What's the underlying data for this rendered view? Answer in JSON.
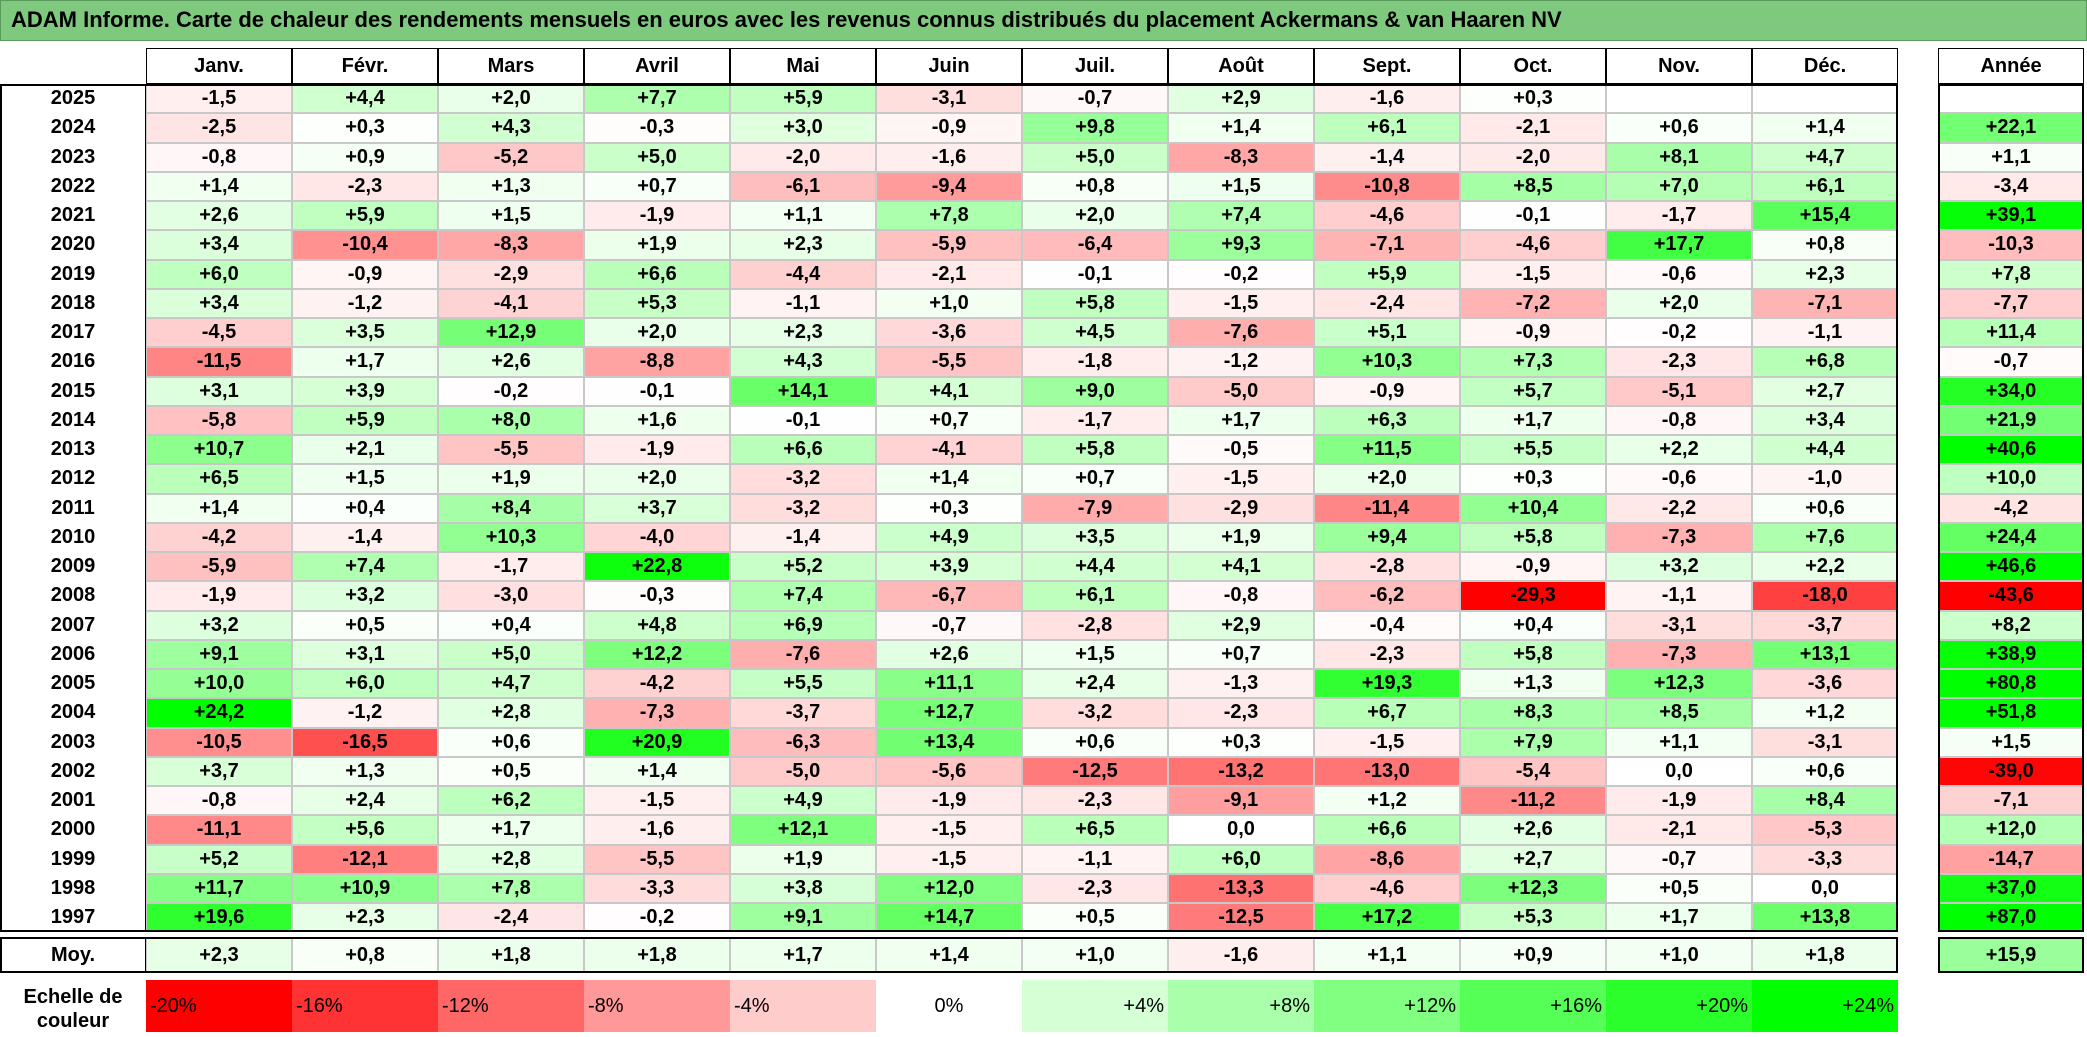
{
  "title": "ADAM Informe. Carte de chaleur des rendements mensuels en euros avec les revenus connus distribués du placement Ackermans & van Haaren NV",
  "chart_data": {
    "type": "heatmap",
    "title": "ADAM Informe. Carte de chaleur des rendements mensuels en euros avec les revenus connus distribués du placement Ackermans & van Haaren NV",
    "months": [
      "Janv.",
      "Févr.",
      "Mars",
      "Avril",
      "Mai",
      "Juin",
      "Juil.",
      "Août",
      "Sept.",
      "Oct.",
      "Nov.",
      "Déc."
    ],
    "year_header": "Année",
    "average_label": "Moy.",
    "rows": [
      {
        "year": "2025",
        "months": [
          "-1,5",
          "+4,4",
          "+2,0",
          "+7,7",
          "+5,9",
          "-3,1",
          "-0,7",
          "+2,9",
          "-1,6",
          "+0,3",
          "",
          ""
        ],
        "annual": ""
      },
      {
        "year": "2024",
        "months": [
          "-2,5",
          "+0,3",
          "+4,3",
          "-0,3",
          "+3,0",
          "-0,9",
          "+9,8",
          "+1,4",
          "+6,1",
          "-2,1",
          "+0,6",
          "+1,4"
        ],
        "annual": "+22,1"
      },
      {
        "year": "2023",
        "months": [
          "-0,8",
          "+0,9",
          "-5,2",
          "+5,0",
          "-2,0",
          "-1,6",
          "+5,0",
          "-8,3",
          "-1,4",
          "-2,0",
          "+8,1",
          "+4,7"
        ],
        "annual": "+1,1"
      },
      {
        "year": "2022",
        "months": [
          "+1,4",
          "-2,3",
          "+1,3",
          "+0,7",
          "-6,1",
          "-9,4",
          "+0,8",
          "+1,5",
          "-10,8",
          "+8,5",
          "+7,0",
          "+6,1"
        ],
        "annual": "-3,4"
      },
      {
        "year": "2021",
        "months": [
          "+2,6",
          "+5,9",
          "+1,5",
          "-1,9",
          "+1,1",
          "+7,8",
          "+2,0",
          "+7,4",
          "-4,6",
          "-0,1",
          "-1,7",
          "+15,4"
        ],
        "annual": "+39,1"
      },
      {
        "year": "2020",
        "months": [
          "+3,4",
          "-10,4",
          "-8,3",
          "+1,9",
          "+2,3",
          "-5,9",
          "-6,4",
          "+9,3",
          "-7,1",
          "-4,6",
          "+17,7",
          "+0,8"
        ],
        "annual": "-10,3"
      },
      {
        "year": "2019",
        "months": [
          "+6,0",
          "-0,9",
          "-2,9",
          "+6,6",
          "-4,4",
          "-2,1",
          "-0,1",
          "-0,2",
          "+5,9",
          "-1,5",
          "-0,6",
          "+2,3"
        ],
        "annual": "+7,8"
      },
      {
        "year": "2018",
        "months": [
          "+3,4",
          "-1,2",
          "-4,1",
          "+5,3",
          "-1,1",
          "+1,0",
          "+5,8",
          "-1,5",
          "-2,4",
          "-7,2",
          "+2,0",
          "-7,1"
        ],
        "annual": "-7,7"
      },
      {
        "year": "2017",
        "months": [
          "-4,5",
          "+3,5",
          "+12,9",
          "+2,0",
          "+2,3",
          "-3,6",
          "+4,5",
          "-7,6",
          "+5,1",
          "-0,9",
          "-0,2",
          "-1,1"
        ],
        "annual": "+11,4"
      },
      {
        "year": "2016",
        "months": [
          "-11,5",
          "+1,7",
          "+2,6",
          "-8,8",
          "+4,3",
          "-5,5",
          "-1,8",
          "-1,2",
          "+10,3",
          "+7,3",
          "-2,3",
          "+6,8"
        ],
        "annual": "-0,7"
      },
      {
        "year": "2015",
        "months": [
          "+3,1",
          "+3,9",
          "-0,2",
          "-0,1",
          "+14,1",
          "+4,1",
          "+9,0",
          "-5,0",
          "-0,9",
          "+5,7",
          "-5,1",
          "+2,7"
        ],
        "annual": "+34,0"
      },
      {
        "year": "2014",
        "months": [
          "-5,8",
          "+5,9",
          "+8,0",
          "+1,6",
          "-0,1",
          "+0,7",
          "-1,7",
          "+1,7",
          "+6,3",
          "+1,7",
          "-0,8",
          "+3,4"
        ],
        "annual": "+21,9"
      },
      {
        "year": "2013",
        "months": [
          "+10,7",
          "+2,1",
          "-5,5",
          "-1,9",
          "+6,6",
          "-4,1",
          "+5,8",
          "-0,5",
          "+11,5",
          "+5,5",
          "+2,2",
          "+4,4"
        ],
        "annual": "+40,6"
      },
      {
        "year": "2012",
        "months": [
          "+6,5",
          "+1,5",
          "+1,9",
          "+2,0",
          "-3,2",
          "+1,4",
          "+0,7",
          "-1,5",
          "+2,0",
          "+0,3",
          "-0,6",
          "-1,0"
        ],
        "annual": "+10,0"
      },
      {
        "year": "2011",
        "months": [
          "+1,4",
          "+0,4",
          "+8,4",
          "+3,7",
          "-3,2",
          "+0,3",
          "-7,9",
          "-2,9",
          "-11,4",
          "+10,4",
          "-2,2",
          "+0,6"
        ],
        "annual": "-4,2"
      },
      {
        "year": "2010",
        "months": [
          "-4,2",
          "-1,4",
          "+10,3",
          "-4,0",
          "-1,4",
          "+4,9",
          "+3,5",
          "+1,9",
          "+9,4",
          "+5,8",
          "-7,3",
          "+7,6"
        ],
        "annual": "+24,4"
      },
      {
        "year": "2009",
        "months": [
          "-5,9",
          "+7,4",
          "-1,7",
          "+22,8",
          "+5,2",
          "+3,9",
          "+4,4",
          "+4,1",
          "-2,8",
          "-0,9",
          "+3,2",
          "+2,2"
        ],
        "annual": "+46,6"
      },
      {
        "year": "2008",
        "months": [
          "-1,9",
          "+3,2",
          "-3,0",
          "-0,3",
          "+7,4",
          "-6,7",
          "+6,1",
          "-0,8",
          "-6,2",
          "-29,3",
          "-1,1",
          "-18,0"
        ],
        "annual": "-43,6"
      },
      {
        "year": "2007",
        "months": [
          "+3,2",
          "+0,5",
          "+0,4",
          "+4,8",
          "+6,9",
          "-0,7",
          "-2,8",
          "+2,9",
          "-0,4",
          "+0,4",
          "-3,1",
          "-3,7"
        ],
        "annual": "+8,2"
      },
      {
        "year": "2006",
        "months": [
          "+9,1",
          "+3,1",
          "+5,0",
          "+12,2",
          "-7,6",
          "+2,6",
          "+1,5",
          "+0,7",
          "-2,3",
          "+5,8",
          "-7,3",
          "+13,1"
        ],
        "annual": "+38,9"
      },
      {
        "year": "2005",
        "months": [
          "+10,0",
          "+6,0",
          "+4,7",
          "-4,2",
          "+5,5",
          "+11,1",
          "+2,4",
          "-1,3",
          "+19,3",
          "+1,3",
          "+12,3",
          "-3,6"
        ],
        "annual": "+80,8"
      },
      {
        "year": "2004",
        "months": [
          "+24,2",
          "-1,2",
          "+2,8",
          "-7,3",
          "-3,7",
          "+12,7",
          "-3,2",
          "-2,3",
          "+6,7",
          "+8,3",
          "+8,5",
          "+1,2"
        ],
        "annual": "+51,8"
      },
      {
        "year": "2003",
        "months": [
          "-10,5",
          "-16,5",
          "+0,6",
          "+20,9",
          "-6,3",
          "+13,4",
          "+0,6",
          "+0,3",
          "-1,5",
          "+7,9",
          "+1,1",
          "-3,1"
        ],
        "annual": "+1,5"
      },
      {
        "year": "2002",
        "months": [
          "+3,7",
          "+1,3",
          "+0,5",
          "+1,4",
          "-5,0",
          "-5,6",
          "-12,5",
          "-13,2",
          "-13,0",
          "-5,4",
          "0,0",
          "+0,6"
        ],
        "annual": "-39,0"
      },
      {
        "year": "2001",
        "months": [
          "-0,8",
          "+2,4",
          "+6,2",
          "-1,5",
          "+4,9",
          "-1,9",
          "-2,3",
          "-9,1",
          "+1,2",
          "-11,2",
          "-1,9",
          "+8,4"
        ],
        "annual": "-7,1"
      },
      {
        "year": "2000",
        "months": [
          "-11,1",
          "+5,6",
          "+1,7",
          "-1,6",
          "+12,1",
          "-1,5",
          "+6,5",
          "0,0",
          "+6,6",
          "+2,6",
          "-2,1",
          "-5,3"
        ],
        "annual": "+12,0"
      },
      {
        "year": "1999",
        "months": [
          "+5,2",
          "-12,1",
          "+2,8",
          "-5,5",
          "+1,9",
          "-1,5",
          "-1,1",
          "+6,0",
          "-8,6",
          "+2,7",
          "-0,7",
          "-3,3"
        ],
        "annual": "-14,7"
      },
      {
        "year": "1998",
        "months": [
          "+11,7",
          "+10,9",
          "+7,8",
          "-3,3",
          "+3,8",
          "+12,0",
          "-2,3",
          "-13,3",
          "-4,6",
          "+12,3",
          "+0,5",
          "0,0"
        ],
        "annual": "+37,0"
      },
      {
        "year": "1997",
        "months": [
          "+19,6",
          "+2,3",
          "-2,4",
          "-0,2",
          "+9,1",
          "+14,7",
          "+0,5",
          "-12,5",
          "+17,2",
          "+5,3",
          "+1,7",
          "+13,8"
        ],
        "annual": "+87,0"
      }
    ],
    "averages": {
      "months": [
        "+2,3",
        "+0,8",
        "+1,8",
        "+1,8",
        "+1,7",
        "+1,4",
        "+1,0",
        "-1,6",
        "+1,1",
        "+0,9",
        "+1,0",
        "+1,8"
      ],
      "annual": "+15,9"
    },
    "color_scale": {
      "label": "Echelle de couleur",
      "stops": [
        "-20%",
        "-16%",
        "-12%",
        "-8%",
        "-4%",
        "0%",
        "+4%",
        "+8%",
        "+12%",
        "+16%",
        "+20%",
        "+24%"
      ],
      "negative_color": "#ff0000",
      "neutral_color": "#ffffff",
      "positive_color": "#00ff00"
    }
  }
}
